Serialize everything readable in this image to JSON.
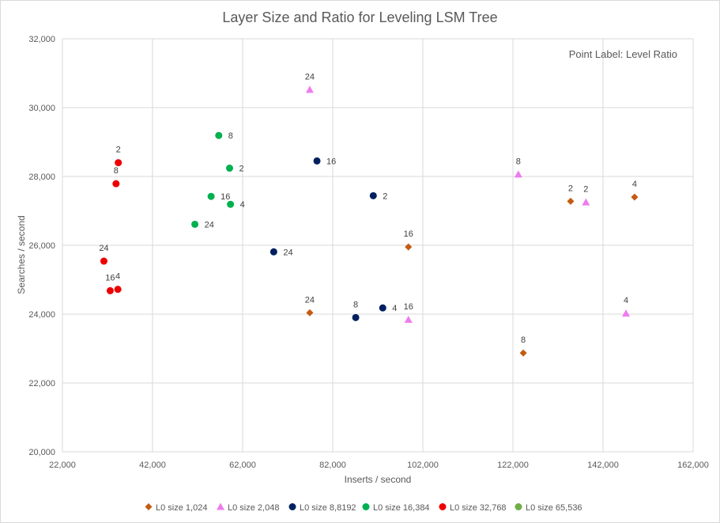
{
  "chart_data": {
    "type": "scatter",
    "title": "Layer Size and Ratio for Leveling LSM Tree",
    "xlabel": "Inserts / second",
    "ylabel": "Searches / second",
    "xlim": [
      22000,
      162000
    ],
    "ylim": [
      20000,
      32000
    ],
    "x_ticks": [
      22000,
      42000,
      62000,
      82000,
      102000,
      122000,
      142000,
      162000
    ],
    "x_tick_labels": [
      "22,000",
      "42,000",
      "62,000",
      "82,000",
      "102,000",
      "122,000",
      "142,000",
      "162,000"
    ],
    "y_ticks": [
      20000,
      22000,
      24000,
      26000,
      28000,
      30000,
      32000
    ],
    "y_tick_labels": [
      "20,000",
      "22,000",
      "24,000",
      "26,000",
      "28,000",
      "30,000",
      "32,000"
    ],
    "grid": true,
    "annotation": "Point Label: Level Ratio",
    "legend_position": "bottom",
    "series": [
      {
        "name": "L0 size  1,024",
        "marker": "diamond",
        "color": "#c55a11",
        "points": [
          {
            "x": 134800,
            "y": 27280,
            "label": "2"
          },
          {
            "x": 149000,
            "y": 27400,
            "label": "4"
          },
          {
            "x": 124300,
            "y": 22870,
            "label": "8"
          },
          {
            "x": 98800,
            "y": 25950,
            "label": "16"
          },
          {
            "x": 76900,
            "y": 24040,
            "label": "24"
          }
        ]
      },
      {
        "name": "L0 size 2,048",
        "marker": "triangle",
        "color": "#ee7cee",
        "points": [
          {
            "x": 138200,
            "y": 27250,
            "label": "2"
          },
          {
            "x": 147100,
            "y": 24020,
            "label": "4"
          },
          {
            "x": 123200,
            "y": 28060,
            "label": "8"
          },
          {
            "x": 98800,
            "y": 23840,
            "label": "16"
          },
          {
            "x": 76900,
            "y": 30520,
            "label": "24"
          }
        ]
      },
      {
        "name": "L0 size 8,8192",
        "marker": "circle",
        "color": "#002060",
        "points": [
          {
            "x": 91000,
            "y": 27440,
            "label": "2"
          },
          {
            "x": 93100,
            "y": 24180,
            "label": "4"
          },
          {
            "x": 87100,
            "y": 23900,
            "label": "8"
          },
          {
            "x": 78500,
            "y": 28450,
            "label": "16"
          },
          {
            "x": 68900,
            "y": 25810,
            "label": "24"
          }
        ]
      },
      {
        "name": "L0 size 16,384",
        "marker": "circle",
        "color": "#00b050",
        "points": [
          {
            "x": 59100,
            "y": 28240,
            "label": "2"
          },
          {
            "x": 59300,
            "y": 27190,
            "label": "4"
          },
          {
            "x": 56700,
            "y": 29190,
            "label": "8"
          },
          {
            "x": 55000,
            "y": 27420,
            "label": "16"
          },
          {
            "x": 51400,
            "y": 26610,
            "label": "24"
          }
        ]
      },
      {
        "name": "L0 size 32,768",
        "marker": "circle",
        "color": "#ee0000",
        "points": [
          {
            "x": 34400,
            "y": 28400,
            "label": "2"
          },
          {
            "x": 34300,
            "y": 24720,
            "label": "4"
          },
          {
            "x": 33900,
            "y": 27790,
            "label": "8"
          },
          {
            "x": 32600,
            "y": 24680,
            "label": "16"
          },
          {
            "x": 31200,
            "y": 25540,
            "label": "24"
          }
        ]
      },
      {
        "name": "L0 size 65,536",
        "marker": "circle",
        "color": "#70ad47",
        "points": []
      }
    ]
  }
}
